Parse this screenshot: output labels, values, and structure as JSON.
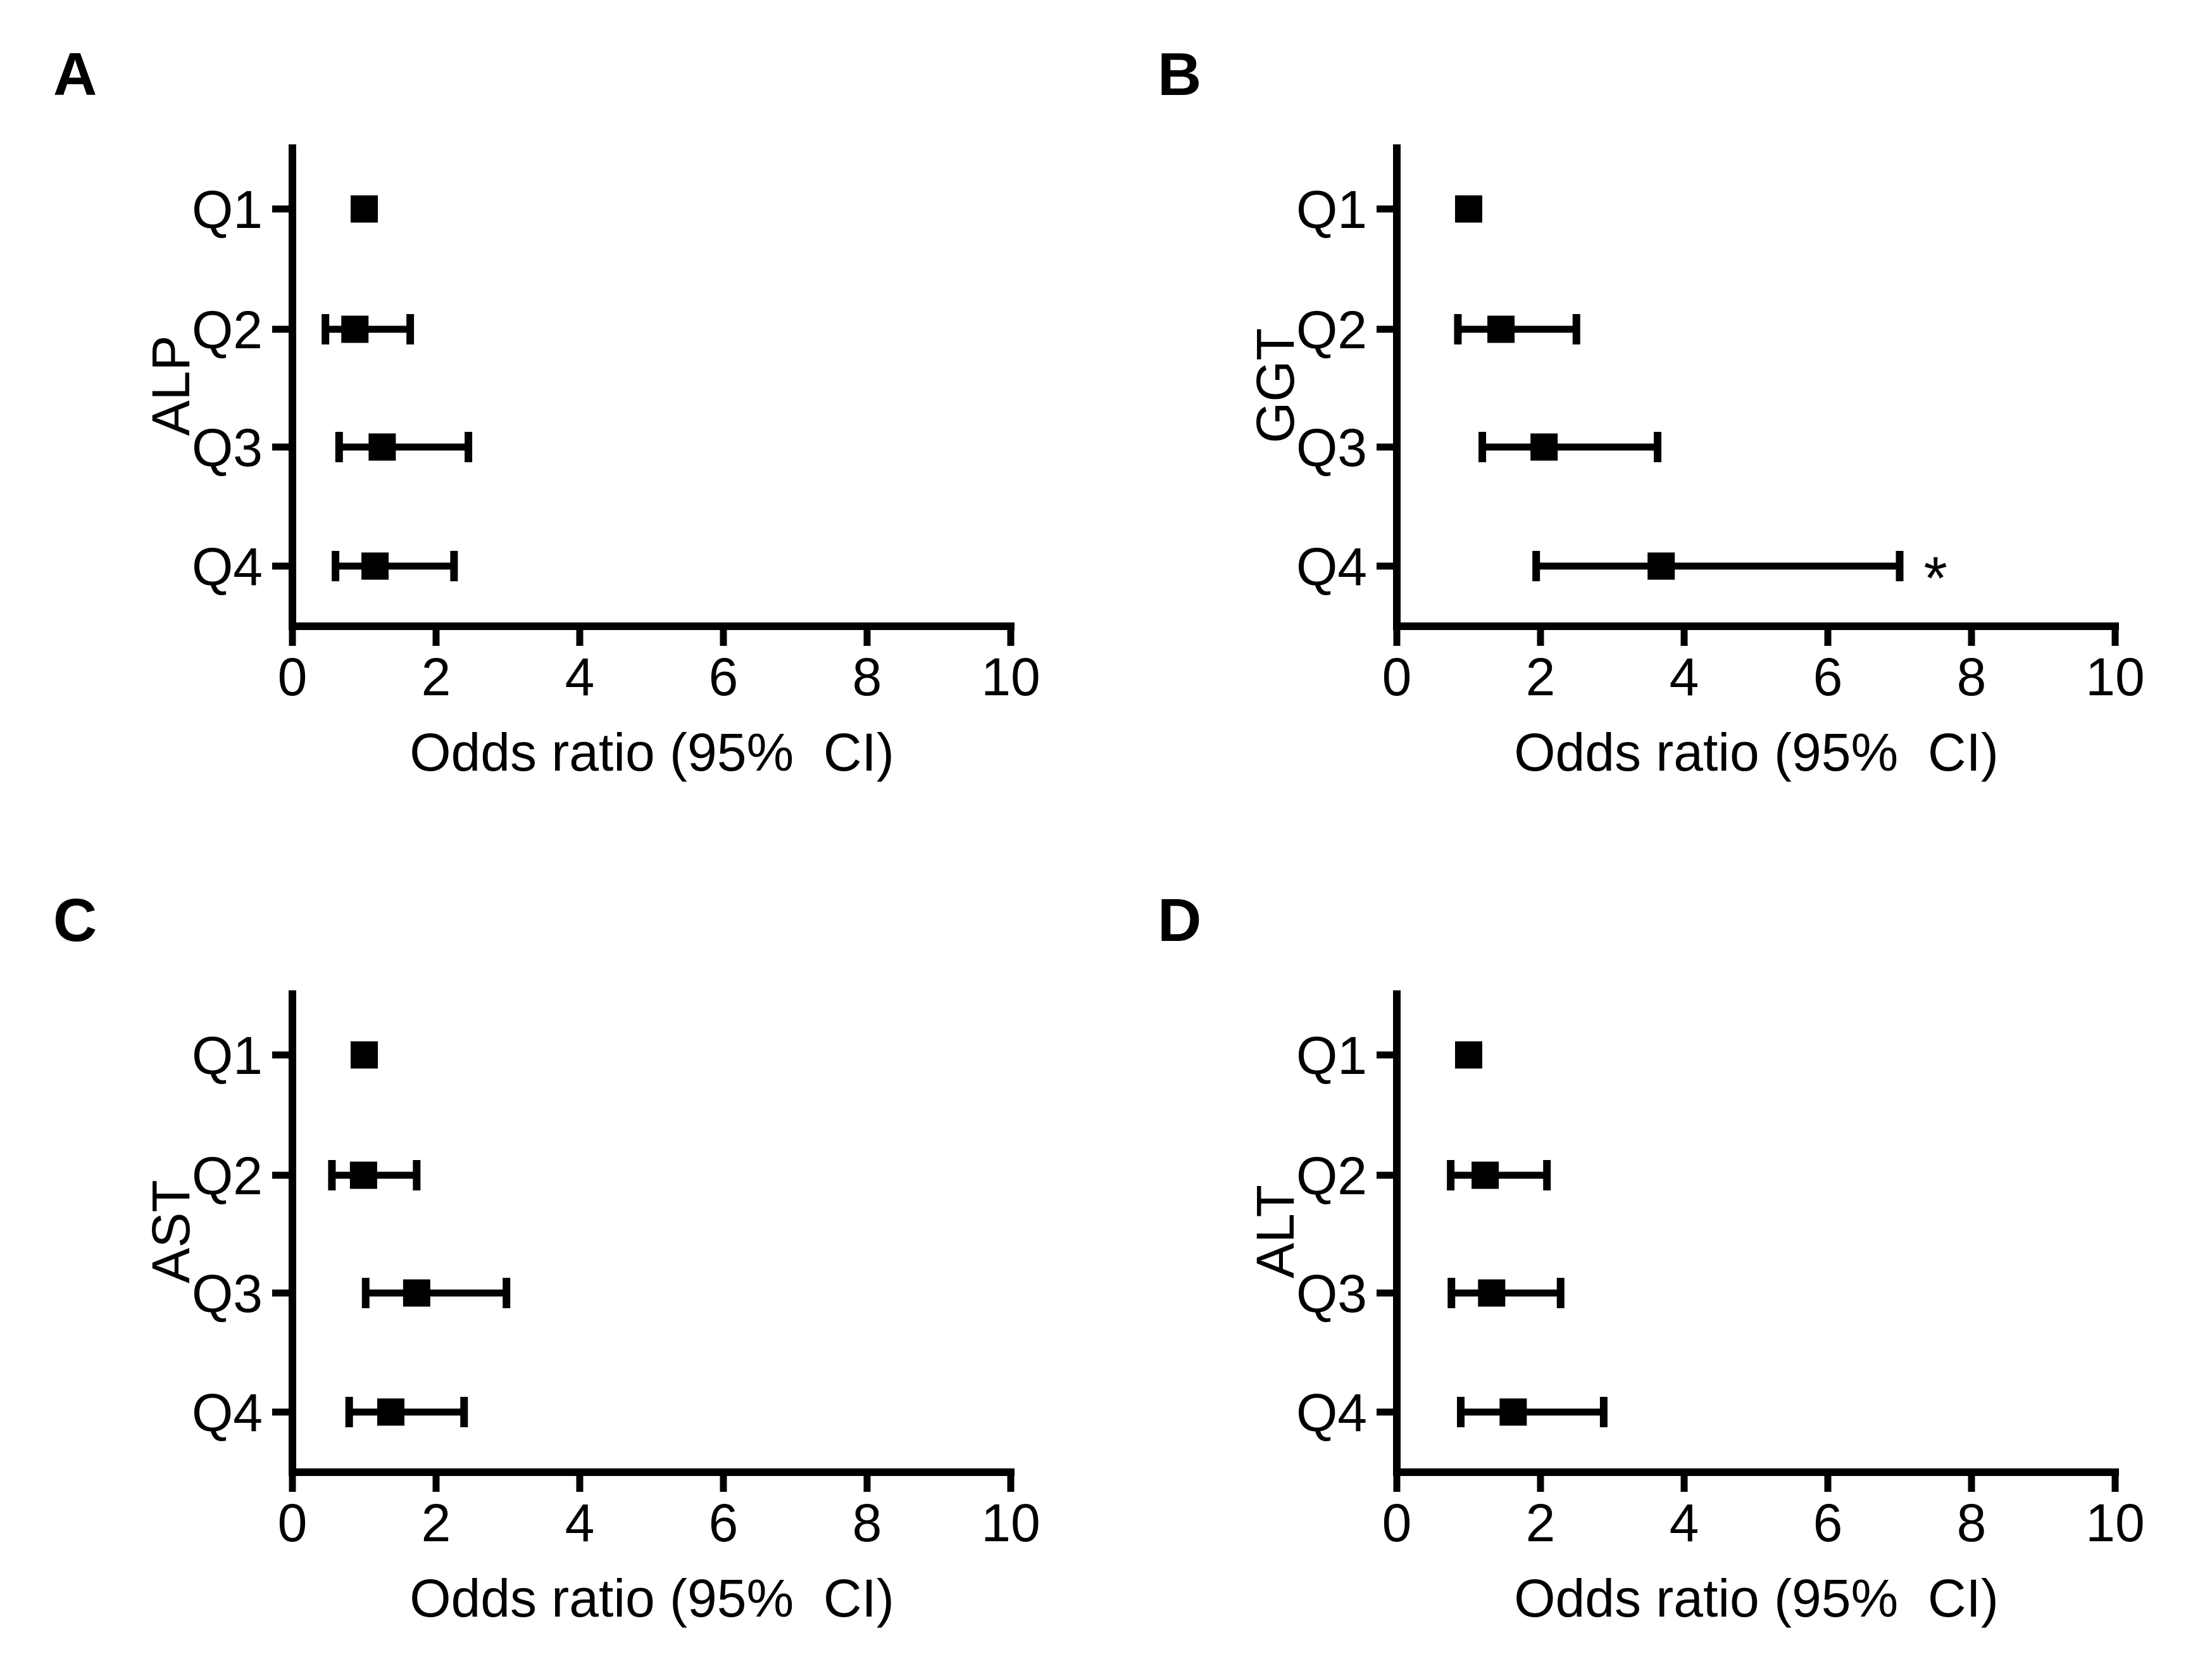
{
  "figure": {
    "background_color": "#ffffff",
    "ink_color": "#000000",
    "layout": "2x2 grid of forest plots",
    "significance_marker": "*"
  },
  "chart_data": [
    {
      "type": "forest",
      "panel_label": "A",
      "ylabel": "ALP",
      "xlabel": "Odds ratio (95%  CI)",
      "xlim": [
        0,
        10
      ],
      "xticks": [
        0,
        2,
        4,
        6,
        8,
        10
      ],
      "categories": [
        "Q1",
        "Q2",
        "Q3",
        "Q4"
      ],
      "points": [
        {
          "category": "Q1",
          "or": 1.0,
          "ci_low": null,
          "ci_high": null,
          "annotation": ""
        },
        {
          "category": "Q2",
          "or": 0.87,
          "ci_low": 0.46,
          "ci_high": 1.64,
          "annotation": ""
        },
        {
          "category": "Q3",
          "or": 1.25,
          "ci_low": 0.65,
          "ci_high": 2.45,
          "annotation": ""
        },
        {
          "category": "Q4",
          "or": 1.15,
          "ci_low": 0.6,
          "ci_high": 2.25,
          "annotation": ""
        }
      ]
    },
    {
      "type": "forest",
      "panel_label": "B",
      "ylabel": "GGT",
      "xlabel": "Odds ratio (95%  CI)",
      "xlim": [
        0,
        10
      ],
      "xticks": [
        0,
        2,
        4,
        6,
        8,
        10
      ],
      "categories": [
        "Q1",
        "Q2",
        "Q3",
        "Q4"
      ],
      "points": [
        {
          "category": "Q1",
          "or": 1.0,
          "ci_low": null,
          "ci_high": null,
          "annotation": ""
        },
        {
          "category": "Q2",
          "or": 1.45,
          "ci_low": 0.85,
          "ci_high": 2.5,
          "annotation": ""
        },
        {
          "category": "Q3",
          "or": 2.05,
          "ci_low": 1.19,
          "ci_high": 3.63,
          "annotation": ""
        },
        {
          "category": "Q4",
          "or": 3.68,
          "ci_low": 1.94,
          "ci_high": 7.0,
          "annotation": "*"
        }
      ]
    },
    {
      "type": "forest",
      "panel_label": "C",
      "ylabel": "AST",
      "xlabel": "Odds ratio (95%  CI)",
      "xlim": [
        0,
        10
      ],
      "xticks": [
        0,
        2,
        4,
        6,
        8,
        10
      ],
      "categories": [
        "Q1",
        "Q2",
        "Q3",
        "Q4"
      ],
      "points": [
        {
          "category": "Q1",
          "or": 1.0,
          "ci_low": null,
          "ci_high": null,
          "annotation": ""
        },
        {
          "category": "Q2",
          "or": 0.99,
          "ci_low": 0.55,
          "ci_high": 1.73,
          "annotation": ""
        },
        {
          "category": "Q3",
          "or": 1.73,
          "ci_low": 1.02,
          "ci_high": 2.98,
          "annotation": ""
        },
        {
          "category": "Q4",
          "or": 1.37,
          "ci_low": 0.79,
          "ci_high": 2.39,
          "annotation": ""
        }
      ]
    },
    {
      "type": "forest",
      "panel_label": "D",
      "ylabel": "ALT",
      "xlabel": "Odds ratio (95%  CI)",
      "xlim": [
        0,
        10
      ],
      "xticks": [
        0,
        2,
        4,
        6,
        8,
        10
      ],
      "categories": [
        "Q1",
        "Q2",
        "Q3",
        "Q4"
      ],
      "points": [
        {
          "category": "Q1",
          "or": 1.0,
          "ci_low": null,
          "ci_high": null,
          "annotation": ""
        },
        {
          "category": "Q2",
          "or": 1.23,
          "ci_low": 0.75,
          "ci_high": 2.09,
          "annotation": ""
        },
        {
          "category": "Q3",
          "or": 1.32,
          "ci_low": 0.76,
          "ci_high": 2.28,
          "annotation": ""
        },
        {
          "category": "Q4",
          "or": 1.62,
          "ci_low": 0.89,
          "ci_high": 2.88,
          "annotation": ""
        }
      ]
    }
  ]
}
